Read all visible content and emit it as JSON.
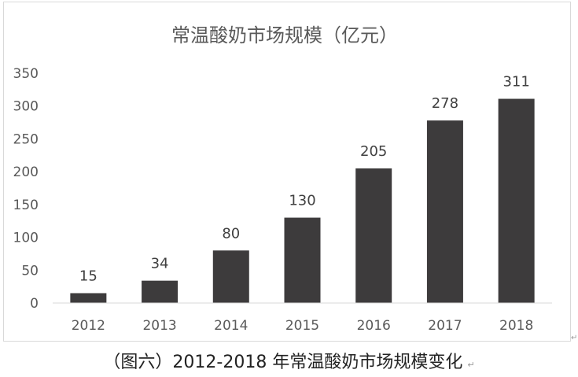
{
  "chart_data": {
    "type": "bar",
    "title": "常温酸奶市场规模（亿元）",
    "categories": [
      "2012",
      "2013",
      "2014",
      "2015",
      "2016",
      "2017",
      "2018"
    ],
    "values": [
      15,
      34,
      80,
      130,
      205,
      278,
      311
    ],
    "y_ticks": [
      "0",
      "50",
      "100",
      "150",
      "200",
      "250",
      "300",
      "350"
    ],
    "ylim": [
      0,
      350
    ],
    "xlabel": "",
    "ylabel": "",
    "grid": false,
    "legend": "none",
    "bar_color": "#3d3b3c",
    "axis_color": "#d9d9d9",
    "text_color": "#595959",
    "label_color": "#404040"
  },
  "caption": {
    "text": "（图六）2012-2018 年常温酸奶市场规模变化",
    "return_mark": "↵"
  },
  "edge_mark": "↵"
}
